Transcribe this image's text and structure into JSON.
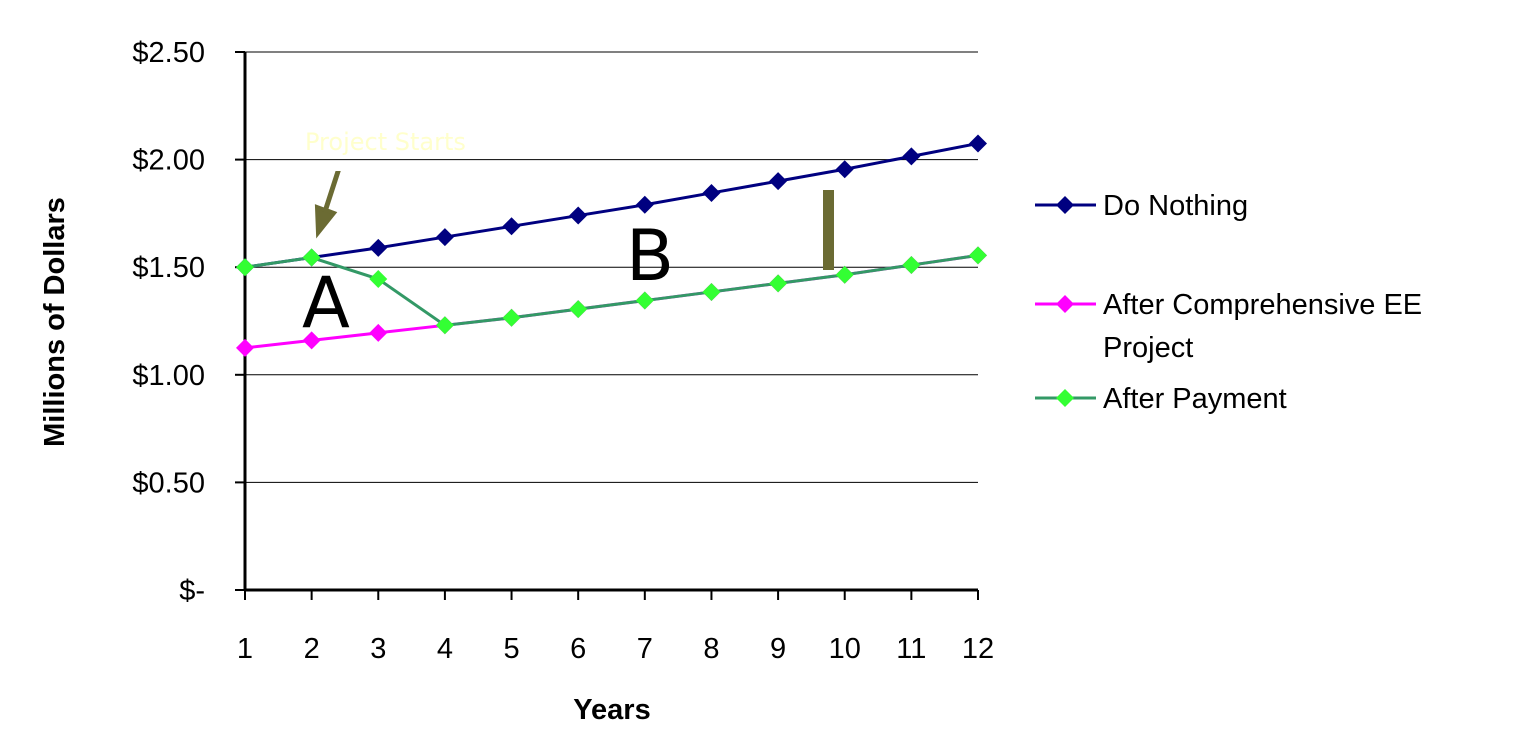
{
  "chart_data": {
    "type": "line",
    "title": "",
    "xlabel": "Years",
    "ylabel": "Millions of Dollars",
    "categories": [
      "1",
      "2",
      "3",
      "4",
      "5",
      "6",
      "7",
      "8",
      "9",
      "10",
      "11",
      "12"
    ],
    "x": [
      1,
      2,
      3,
      4,
      5,
      6,
      7,
      8,
      9,
      10,
      11,
      12
    ],
    "ylim": [
      0,
      2.5
    ],
    "yticks": [
      0,
      0.5,
      1.0,
      1.5,
      2.0,
      2.5
    ],
    "ytick_labels": [
      "$-",
      "$0.50",
      "$1.00",
      "$1.50",
      "$2.00",
      "$2.50"
    ],
    "grid": true,
    "legend_position": "right",
    "series": [
      {
        "name": "Do Nothing",
        "color": "#000080",
        "marker": "diamond",
        "values": [
          1.5,
          1.545,
          1.59,
          1.64,
          1.69,
          1.74,
          1.79,
          1.845,
          1.9,
          1.955,
          2.015,
          2.075
        ]
      },
      {
        "name": "After Comprehensive EE Project",
        "color": "#ff00ff",
        "marker": "diamond",
        "values": [
          1.125,
          1.16,
          1.195,
          1.23,
          1.265,
          1.305,
          1.345,
          1.385,
          1.425,
          1.465,
          1.51,
          1.555
        ]
      },
      {
        "name": "After Payment",
        "color": "#339966",
        "marker_color": "#33ff33",
        "marker": "diamond",
        "values": [
          1.5,
          1.545,
          1.445,
          1.23,
          1.265,
          1.305,
          1.345,
          1.385,
          1.425,
          1.465,
          1.51,
          1.555
        ]
      }
    ],
    "annotations": {
      "project_starts": {
        "text": "Project Starts",
        "color": "#ffffcc",
        "arrow_color": "#6b6b33",
        "at_x": 2
      },
      "label_a": "A",
      "label_b": "B",
      "gap_bar_color": "#6b6b33"
    }
  }
}
